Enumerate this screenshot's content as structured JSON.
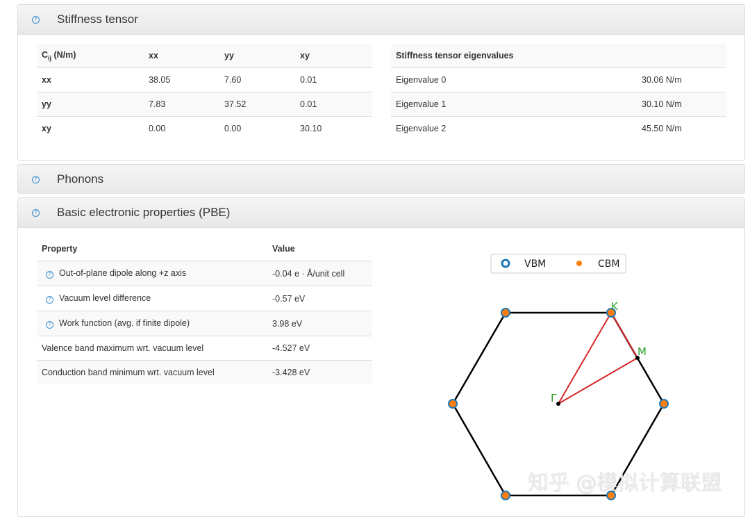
{
  "stiffness": {
    "title": "Stiffness tensor",
    "table": {
      "header_main": "C",
      "header_sub": "ij",
      "header_unit": " (N/m)",
      "cols": [
        "xx",
        "yy",
        "xy"
      ],
      "rows": [
        {
          "label": "xx",
          "values": [
            "38.05",
            "7.60",
            "0.01"
          ]
        },
        {
          "label": "yy",
          "values": [
            "7.83",
            "37.52",
            "0.01"
          ]
        },
        {
          "label": "xy",
          "values": [
            "0.00",
            "0.00",
            "30.10"
          ]
        }
      ]
    },
    "eigen": {
      "header": "Stiffness tensor eigenvalues",
      "rows": [
        {
          "label": "Eigenvalue 0",
          "value": "30.06 N/m"
        },
        {
          "label": "Eigenvalue 1",
          "value": "30.10 N/m"
        },
        {
          "label": "Eigenvalue 2",
          "value": "45.50 N/m"
        }
      ]
    }
  },
  "phonons": {
    "title": "Phonons"
  },
  "electronic": {
    "title": "Basic electronic properties (PBE)",
    "table": {
      "headers": [
        "Property",
        "Value"
      ],
      "rows": [
        {
          "label": "Out-of-plane dipole along +z axis",
          "value": "-0.04 e · Å/unit cell",
          "help": true
        },
        {
          "label": "Vacuum level difference",
          "value": "-0.57 eV",
          "help": true
        },
        {
          "label": "Work function (avg. if finite dipole)",
          "value": "3.98 eV",
          "help": true
        },
        {
          "label": "Valence band maximum wrt. vacuum level",
          "value": "-4.527 eV",
          "help": false
        },
        {
          "label": "Conduction band minimum wrt. vacuum level",
          "value": "-3.428 eV",
          "help": false
        }
      ]
    },
    "bz": {
      "legend": [
        "VBM",
        "CBM"
      ],
      "points": {
        "gamma": "Γ",
        "k": "K",
        "m": "M"
      },
      "colors": {
        "vbm": "#1f77b4",
        "cbm": "#ff7f0e",
        "path": "#d62728",
        "label": "#2ca02c"
      }
    }
  },
  "watermark": "知乎 @模拟计算联盟"
}
